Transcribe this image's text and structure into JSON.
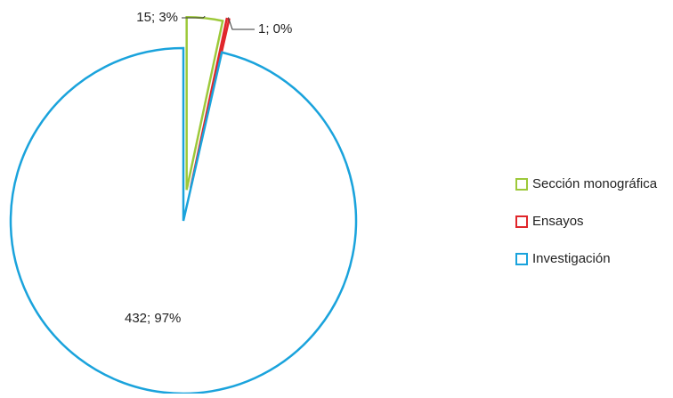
{
  "chart_data": {
    "type": "pie",
    "categories": [
      "Sección monográfica",
      "Ensayos",
      "Investigación"
    ],
    "values": [
      15,
      1,
      432
    ],
    "value_labels": [
      "15; 3%",
      "1; 0%",
      "432; 97%"
    ],
    "colors": [
      "#9dc93a",
      "#e0262b",
      "#1aa3dc"
    ],
    "legend": "right"
  }
}
